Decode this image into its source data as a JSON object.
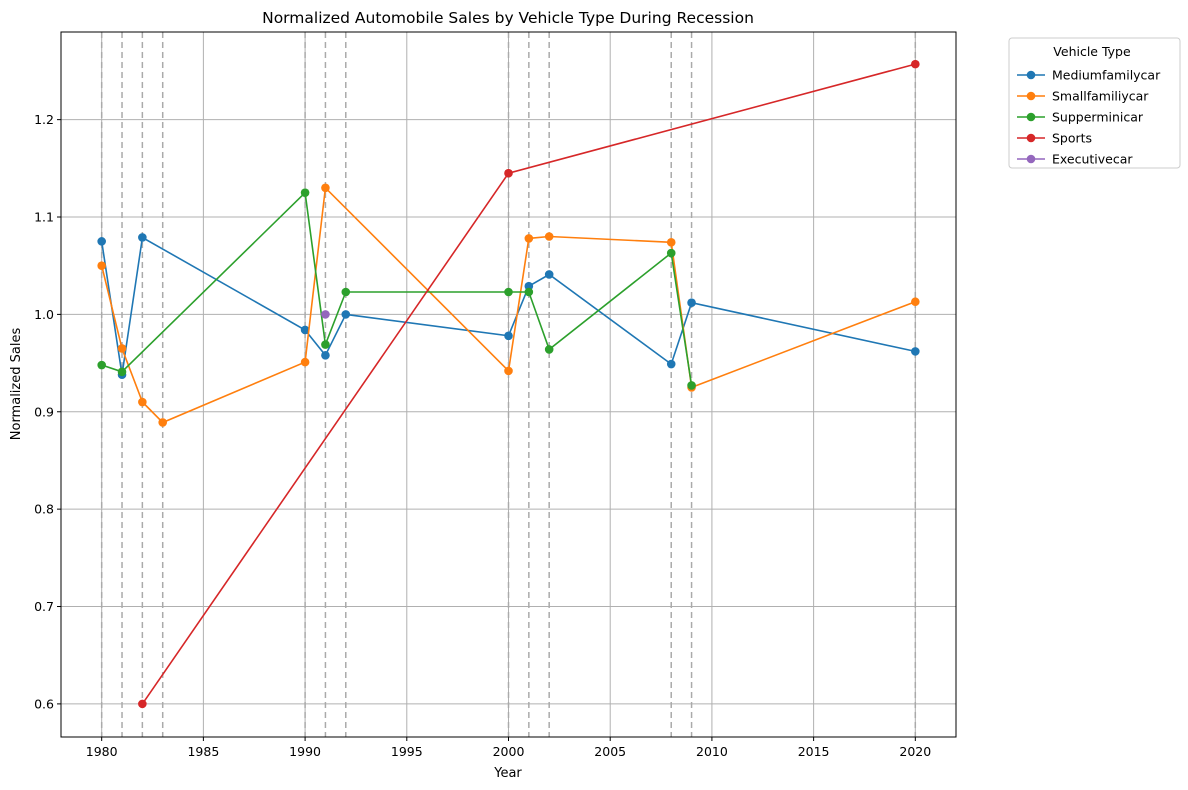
{
  "chart_data": {
    "type": "line",
    "title": "Normalized Automobile Sales by Vehicle Type During Recession",
    "xlabel": "Year",
    "ylabel": "Normalized Sales",
    "xlim": [
      1978,
      2022
    ],
    "ylim": [
      0.566,
      1.29
    ],
    "xticks": [
      1980,
      1985,
      1990,
      1995,
      2000,
      2005,
      2010,
      2015,
      2020
    ],
    "yticks": [
      0.6,
      0.7,
      0.8,
      0.9,
      1.0,
      1.1,
      1.2
    ],
    "grid": true,
    "recession_years": [
      1980,
      1981,
      1982,
      1983,
      1990,
      1991,
      1992,
      2000,
      2001,
      2002,
      2008,
      2009,
      2020
    ],
    "legend": {
      "title": "Vehicle Type",
      "position": "outside-top-right"
    },
    "series": [
      {
        "name": "Mediumfamilycar",
        "color": "#1f77b4",
        "points": [
          [
            1980,
            1.075
          ],
          [
            1981,
            0.938
          ],
          [
            1982,
            1.079
          ],
          [
            1990,
            0.984
          ],
          [
            1991,
            0.958
          ],
          [
            1992,
            1.0
          ],
          [
            2000,
            0.978
          ],
          [
            2001,
            1.029
          ],
          [
            2002,
            1.041
          ],
          [
            2008,
            0.949
          ],
          [
            2009,
            1.012
          ],
          [
            2020,
            0.962
          ]
        ]
      },
      {
        "name": "Smallfamiliycar",
        "color": "#ff7f0e",
        "points": [
          [
            1980,
            1.05
          ],
          [
            1981,
            0.965
          ],
          [
            1982,
            0.91
          ],
          [
            1983,
            0.889
          ],
          [
            1990,
            0.951
          ],
          [
            1991,
            1.13
          ],
          [
            2000,
            0.942
          ],
          [
            2001,
            1.078
          ],
          [
            2002,
            1.08
          ],
          [
            2008,
            1.074
          ],
          [
            2009,
            0.925
          ],
          [
            2020,
            1.013
          ]
        ]
      },
      {
        "name": "Supperminicar",
        "color": "#2ca02c",
        "points": [
          [
            1980,
            0.948
          ],
          [
            1981,
            0.941
          ],
          [
            1990,
            1.125
          ],
          [
            1991,
            0.969
          ],
          [
            1992,
            1.023
          ],
          [
            2000,
            1.023
          ],
          [
            2001,
            1.023
          ],
          [
            2002,
            0.964
          ],
          [
            2008,
            1.063
          ],
          [
            2009,
            0.927
          ]
        ]
      },
      {
        "name": "Sports",
        "color": "#d62728",
        "points": [
          [
            1982,
            0.6
          ],
          [
            2000,
            1.145
          ],
          [
            2020,
            1.257
          ]
        ]
      },
      {
        "name": "Executivecar",
        "color": "#9467bd",
        "points": [
          [
            1991,
            1.0
          ]
        ]
      }
    ]
  }
}
